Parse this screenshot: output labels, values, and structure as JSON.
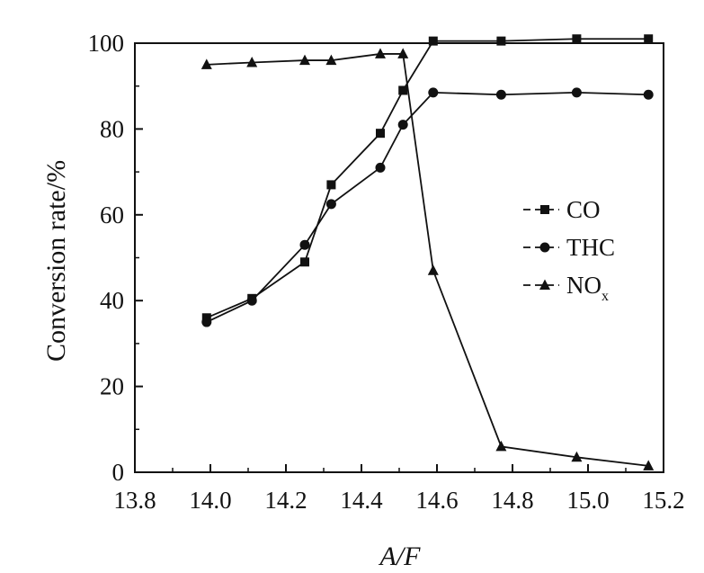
{
  "chart_data": {
    "type": "line",
    "xlabel": "A/F",
    "ylabel": "Conversion rate/%",
    "xlim": [
      13.8,
      15.2
    ],
    "ylim": [
      0,
      100
    ],
    "xticks": [
      "13.8",
      "14.0",
      "14.2",
      "14.4",
      "14.6",
      "14.8",
      "15.0",
      "15.2"
    ],
    "yticks": [
      "0",
      "20",
      "40",
      "60",
      "80",
      "100"
    ],
    "legend_position": "right-middle",
    "grid": false,
    "series": [
      {
        "name": "CO",
        "marker": "square",
        "points": [
          [
            13.99,
            36
          ],
          [
            14.11,
            40.5
          ],
          [
            14.25,
            49
          ],
          [
            14.32,
            67
          ],
          [
            14.45,
            79
          ],
          [
            14.51,
            89
          ],
          [
            14.59,
            100.5
          ],
          [
            14.77,
            100.5
          ],
          [
            14.97,
            101
          ],
          [
            15.16,
            101
          ]
        ]
      },
      {
        "name": "THC",
        "marker": "circle",
        "points": [
          [
            13.99,
            35
          ],
          [
            14.11,
            40
          ],
          [
            14.25,
            53
          ],
          [
            14.32,
            62.5
          ],
          [
            14.45,
            71
          ],
          [
            14.51,
            81
          ],
          [
            14.59,
            88.5
          ],
          [
            14.77,
            88
          ],
          [
            14.97,
            88.5
          ],
          [
            15.16,
            88
          ]
        ]
      },
      {
        "name": "NO",
        "name_subscript": "x",
        "marker": "triangle",
        "points": [
          [
            13.99,
            95
          ],
          [
            14.11,
            95.5
          ],
          [
            14.25,
            96
          ],
          [
            14.32,
            96
          ],
          [
            14.45,
            97.5
          ],
          [
            14.51,
            97.5
          ],
          [
            14.59,
            47
          ],
          [
            14.77,
            6
          ],
          [
            14.97,
            3.5
          ],
          [
            15.16,
            1.5
          ]
        ]
      }
    ]
  }
}
